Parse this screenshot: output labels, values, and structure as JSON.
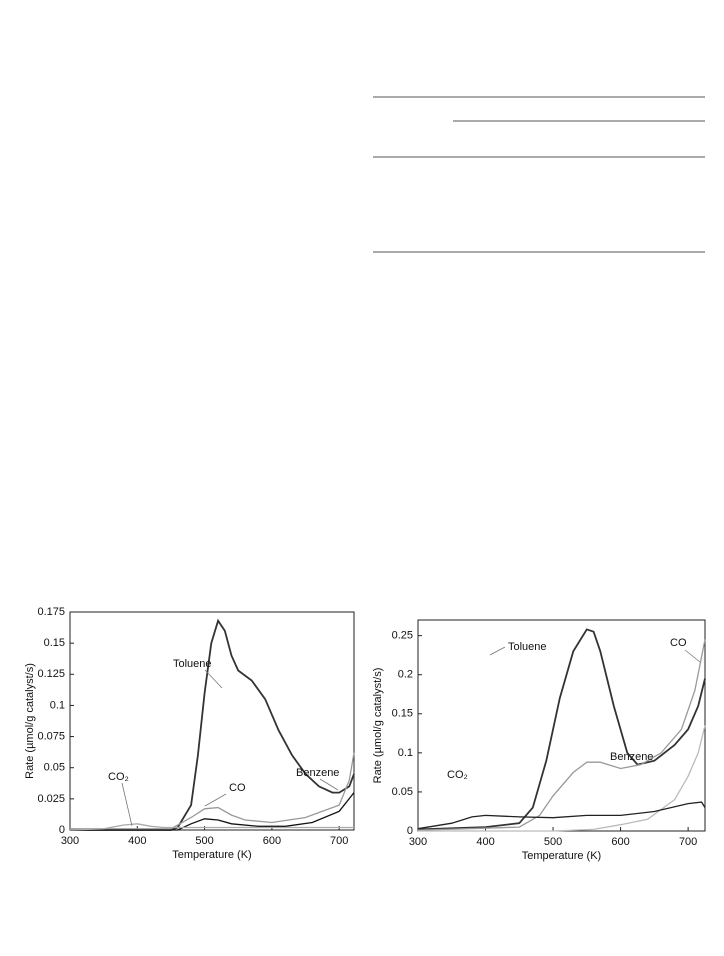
{
  "chart_data": [
    {
      "type": "line",
      "xlabel": "Temperature (K)",
      "ylabel": "Rate (µmol/g catalyst/s)",
      "xlim": [
        300,
        722
      ],
      "xticks": [
        300,
        400,
        500,
        600,
        700
      ],
      "ylim": [
        0,
        0.175
      ],
      "yticks": [
        0,
        0.025,
        0.05,
        0.075,
        0.1,
        0.125,
        0.15,
        0.175
      ],
      "series": [
        {
          "name": "Toluene",
          "color": "#333333",
          "x": [
            300,
            450,
            460,
            480,
            490,
            500,
            510,
            520,
            530,
            540,
            550,
            570,
            590,
            610,
            630,
            650,
            670,
            690,
            700,
            715,
            722
          ],
          "values": [
            0,
            0,
            0.002,
            0.02,
            0.06,
            0.11,
            0.15,
            0.168,
            0.16,
            0.14,
            0.128,
            0.12,
            0.105,
            0.08,
            0.06,
            0.045,
            0.035,
            0.03,
            0.03,
            0.035,
            0.045
          ]
        },
        {
          "name": "CO",
          "color": "#999999",
          "x": [
            300,
            450,
            480,
            500,
            520,
            540,
            560,
            600,
            650,
            700,
            715,
            722
          ],
          "values": [
            0.001,
            0.001,
            0.01,
            0.017,
            0.018,
            0.012,
            0.008,
            0.006,
            0.01,
            0.02,
            0.04,
            0.062
          ]
        },
        {
          "name": "Benzene",
          "color": "#111111",
          "x": [
            300,
            460,
            480,
            500,
            520,
            540,
            580,
            620,
            660,
            700,
            722
          ],
          "values": [
            0,
            0,
            0.005,
            0.009,
            0.008,
            0.005,
            0.003,
            0.003,
            0.006,
            0.015,
            0.03
          ]
        },
        {
          "name": "CO₂",
          "color": "#aaaaaa",
          "x": [
            300,
            350,
            380,
            400,
            420,
            440,
            500,
            600,
            700,
            722
          ],
          "values": [
            0,
            0.001,
            0.004,
            0.005,
            0.003,
            0.002,
            0.002,
            0.002,
            0.002,
            0.002
          ]
        }
      ]
    },
    {
      "type": "line",
      "xlabel": "Temperature (K)",
      "ylabel": "Rate (µmol/g catalyst/s)",
      "xlim": [
        300,
        725
      ],
      "xticks": [
        300,
        400,
        500,
        600,
        700
      ],
      "ylim": [
        0,
        0.27
      ],
      "yticks": [
        0,
        0.05,
        0.1,
        0.15,
        0.2,
        0.25
      ],
      "series": [
        {
          "name": "Toluene",
          "color": "#333333",
          "x": [
            300,
            400,
            450,
            470,
            490,
            510,
            530,
            550,
            560,
            570,
            590,
            610,
            625,
            650,
            680,
            700,
            715,
            725
          ],
          "values": [
            0.002,
            0.005,
            0.01,
            0.03,
            0.09,
            0.17,
            0.23,
            0.258,
            0.255,
            0.23,
            0.16,
            0.1,
            0.085,
            0.09,
            0.11,
            0.13,
            0.16,
            0.195
          ]
        },
        {
          "name": "CO",
          "color": "#999999",
          "x": [
            300,
            450,
            480,
            500,
            530,
            550,
            570,
            600,
            630,
            660,
            690,
            710,
            725
          ],
          "values": [
            0.001,
            0.005,
            0.02,
            0.045,
            0.075,
            0.088,
            0.088,
            0.08,
            0.085,
            0.1,
            0.13,
            0.18,
            0.245
          ]
        },
        {
          "name": "Benzene",
          "color": "#bbbbbb",
          "x": [
            300,
            500,
            560,
            600,
            640,
            680,
            700,
            715,
            725
          ],
          "values": [
            0,
            0,
            0.002,
            0.008,
            0.015,
            0.04,
            0.07,
            0.1,
            0.135
          ]
        },
        {
          "name": "CO₂",
          "color": "#222222",
          "x": [
            300,
            350,
            380,
            400,
            450,
            500,
            550,
            600,
            650,
            700,
            720,
            725
          ],
          "values": [
            0.003,
            0.01,
            0.018,
            0.02,
            0.018,
            0.017,
            0.02,
            0.02,
            0.025,
            0.035,
            0.037,
            0.03
          ]
        }
      ]
    }
  ]
}
